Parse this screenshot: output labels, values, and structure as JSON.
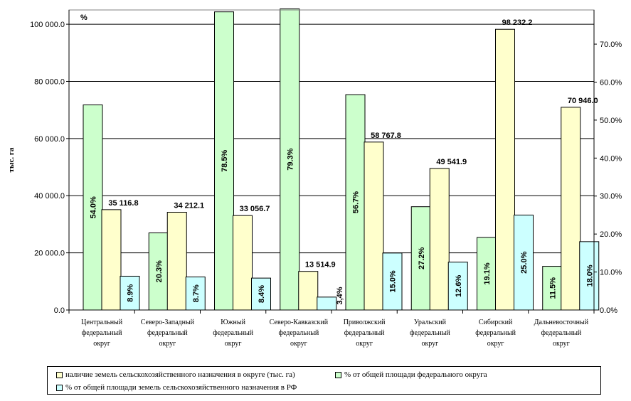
{
  "chart_data": {
    "type": "bar",
    "title": "",
    "ylabel_left": "тыс. га",
    "ylabel_right": "",
    "percent_marker": "%",
    "left_ylim": [
      0,
      105000
    ],
    "right_ylim": [
      0,
      0.79
    ],
    "left_ticks": [
      "0.0",
      "20 000.0",
      "40 000.0",
      "60 000.0",
      "80 000.0",
      "100 000.0"
    ],
    "left_tick_values": [
      0,
      20000,
      40000,
      60000,
      80000,
      100000
    ],
    "right_ticks": [
      "0.0%",
      "10.0%",
      "20.0%",
      "30.0%",
      "40.0%",
      "50.0%",
      "60.0%",
      "70.0%"
    ],
    "right_tick_values": [
      0,
      0.1,
      0.2,
      0.3,
      0.4,
      0.5,
      0.6,
      0.7
    ],
    "grid": true,
    "legend_position": "bottom",
    "categories": [
      [
        "Центральный",
        "федеральный",
        "округ"
      ],
      [
        "Северо-Западный",
        "федеральный",
        "округ"
      ],
      [
        "Южный",
        "федеральный",
        "округ"
      ],
      [
        "Северо-Кавказский",
        "федеральный",
        "округ"
      ],
      [
        "Приволжский",
        "федеральный",
        "округ"
      ],
      [
        "Уральский",
        "федеральный",
        "округ"
      ],
      [
        "Сибирский",
        "федеральный",
        "округ"
      ],
      [
        "Дальневосточный",
        "федеральный",
        "округ"
      ]
    ],
    "series": [
      {
        "name": "% от общей площади федерального округа",
        "axis": "right",
        "color": "#ccffcc",
        "values": [
          0.54,
          0.203,
          0.785,
          0.793,
          0.567,
          0.272,
          0.191,
          0.115
        ],
        "labels": [
          "54.0%",
          "20.3%",
          "78.5%",
          "79.3%",
          "56.7%",
          "27.2%",
          "19.1%",
          "11.5%"
        ]
      },
      {
        "name": "наличие земель сельскохозяйственного назначения в округе (тыс. га)",
        "axis": "left",
        "color": "#ffffcc",
        "values": [
          35116.8,
          34212.1,
          33056.7,
          13514.9,
          58767.8,
          49541.9,
          98232.2,
          70946.0
        ],
        "labels": [
          "35  116.8",
          "34  212.1",
          "33  056.7",
          "13  514.9",
          "58  767.8",
          "49  541.9",
          "98  232.2",
          "70  946.0"
        ]
      },
      {
        "name": "% от общей площади земель сельскохозяйственного назначения в РФ",
        "axis": "right",
        "color": "#ccffff",
        "values": [
          0.089,
          0.087,
          0.084,
          0.034,
          0.15,
          0.126,
          0.25,
          0.18
        ],
        "labels": [
          "8.9%",
          "8.7%",
          "8.4%",
          "3,4%",
          "15.0%",
          "12.6%",
          "25.0%",
          "18.0%"
        ]
      }
    ]
  },
  "legend": {
    "item1": "наличие земель сельскохозяйственного назначения в округе (тыс. га)",
    "item2": "% от общей площади федерального округа",
    "item3": "% от общей площади земель сельскохозяйственного назначения в РФ"
  }
}
